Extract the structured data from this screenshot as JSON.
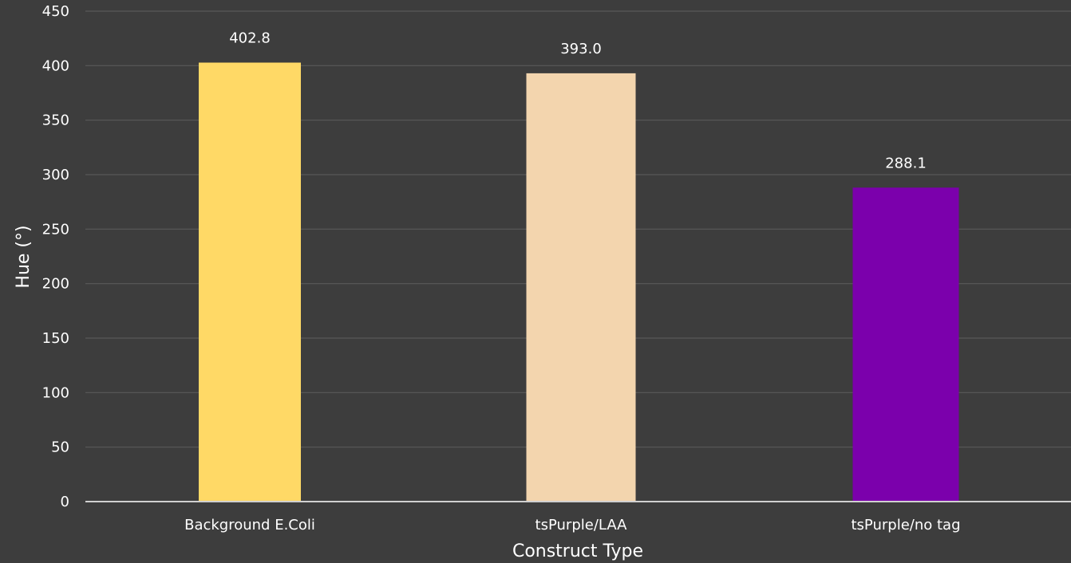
{
  "chart_data": {
    "type": "bar",
    "title": "",
    "xlabel": "Construct Type",
    "ylabel": "Hue (°)",
    "ylim": [
      0,
      450
    ],
    "yticks": [
      0,
      50,
      100,
      150,
      200,
      250,
      300,
      350,
      400,
      450
    ],
    "grid": true,
    "legend": "none",
    "categories": [
      "Background E.Coli",
      "tsPurple/LAA",
      "tsPurple/no tag"
    ],
    "values": [
      402.8,
      393.0,
      288.1
    ],
    "value_labels": [
      "402.8",
      "393.0",
      "288.1"
    ],
    "colors": [
      "#ffd966",
      "#f3d5ae",
      "#7b00ac"
    ],
    "background": "#3d3d3d"
  }
}
